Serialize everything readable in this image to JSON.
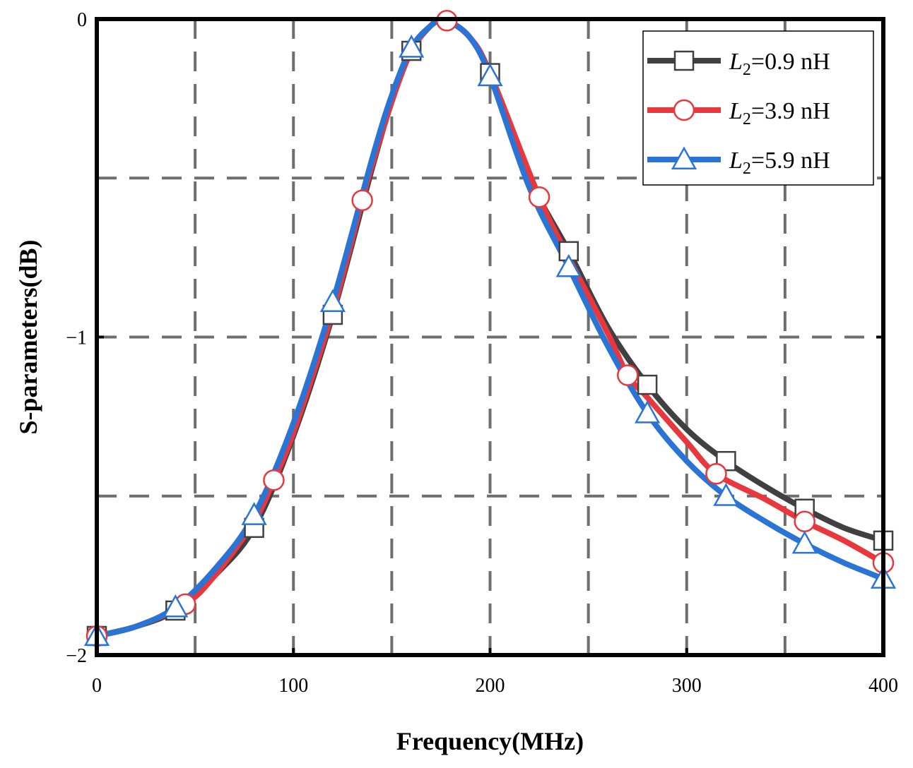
{
  "chart_data": {
    "type": "line",
    "title": "",
    "xlabel": "Frequency(MHz)",
    "ylabel": "S-parameters(dB)",
    "xlim": [
      0,
      400
    ],
    "ylim": [
      -2,
      0
    ],
    "xticks": [
      0,
      100,
      200,
      300,
      400
    ],
    "xtick_labels": [
      "0",
      "100",
      "200",
      "300",
      "400"
    ],
    "yticks": [
      -2,
      -1,
      0
    ],
    "ytick_labels": [
      "−2",
      "−1",
      "0"
    ],
    "grid": true,
    "grid_style": "dashed",
    "grid_x": [
      0,
      50,
      100,
      150,
      200,
      250,
      300,
      350
    ],
    "grid_y": [
      -1.5,
      -1,
      -0.5
    ],
    "legend_position": "top-right",
    "series": [
      {
        "name": "L2=0.9 nH",
        "legend_prefix": "L",
        "legend_sub": "2",
        "legend_suffix": "=0.9 nH",
        "color": "#404040",
        "marker": "square",
        "x": [
          0,
          20,
          40,
          60,
          80,
          100,
          120,
          140,
          150,
          160,
          170,
          175,
          180,
          190,
          200,
          220,
          240,
          260,
          280,
          300,
          320,
          340,
          360,
          380,
          400
        ],
        "y": [
          -1.94,
          -1.91,
          -1.86,
          -1.75,
          -1.6,
          -1.31,
          -0.93,
          -0.47,
          -0.26,
          -0.1,
          -0.02,
          -0.005,
          -0.01,
          -0.06,
          -0.17,
          -0.5,
          -0.73,
          -0.97,
          -1.15,
          -1.29,
          -1.39,
          -1.47,
          -1.54,
          -1.6,
          -1.64
        ],
        "marker_x": [
          0,
          40,
          80,
          120,
          160,
          200,
          240,
          280,
          320,
          360,
          400
        ],
        "marker_y": [
          -1.94,
          -1.86,
          -1.6,
          -0.93,
          -0.1,
          -0.17,
          -0.73,
          -1.15,
          -1.39,
          -1.54,
          -1.64
        ]
      },
      {
        "name": "L2=3.9 nH",
        "legend_prefix": "L",
        "legend_sub": "2",
        "legend_suffix": "=3.9 nH",
        "color": "#e8383d",
        "marker": "circle",
        "x": [
          0,
          20,
          45,
          60,
          80,
          90,
          100,
          120,
          135,
          140,
          150,
          160,
          170,
          178,
          190,
          200,
          225,
          240,
          260,
          270,
          280,
          300,
          315,
          340,
          360,
          380,
          400
        ],
        "y": [
          -1.94,
          -1.91,
          -1.84,
          -1.75,
          -1.58,
          -1.45,
          -1.3,
          -0.92,
          -0.57,
          -0.46,
          -0.26,
          -0.1,
          -0.02,
          -0.005,
          -0.06,
          -0.17,
          -0.56,
          -0.75,
          -0.99,
          -1.12,
          -1.19,
          -1.33,
          -1.43,
          -1.51,
          -1.58,
          -1.64,
          -1.71
        ],
        "marker_x": [
          0,
          45,
          90,
          135,
          178,
          225,
          270,
          315,
          360,
          400
        ],
        "marker_y": [
          -1.94,
          -1.84,
          -1.45,
          -0.57,
          -0.005,
          -0.56,
          -1.12,
          -1.43,
          -1.58,
          -1.71
        ]
      },
      {
        "name": "L2=5.9 nH",
        "legend_prefix": "L",
        "legend_sub": "2",
        "legend_suffix": "=5.9 nH",
        "color": "#2a74d6",
        "marker": "triangle",
        "x": [
          0,
          20,
          40,
          60,
          80,
          100,
          120,
          140,
          150,
          160,
          170,
          175,
          180,
          190,
          200,
          220,
          240,
          260,
          280,
          300,
          320,
          340,
          360,
          380,
          400
        ],
        "y": [
          -1.94,
          -1.91,
          -1.85,
          -1.73,
          -1.56,
          -1.27,
          -0.89,
          -0.44,
          -0.24,
          -0.09,
          -0.02,
          -0.005,
          -0.01,
          -0.06,
          -0.18,
          -0.53,
          -0.78,
          -1.03,
          -1.24,
          -1.39,
          -1.5,
          -1.58,
          -1.65,
          -1.71,
          -1.76
        ],
        "marker_x": [
          0,
          40,
          80,
          120,
          160,
          200,
          240,
          280,
          320,
          360,
          400
        ],
        "marker_y": [
          -1.94,
          -1.85,
          -1.56,
          -0.89,
          -0.09,
          -0.18,
          -0.78,
          -1.24,
          -1.5,
          -1.65,
          -1.76
        ]
      }
    ]
  }
}
